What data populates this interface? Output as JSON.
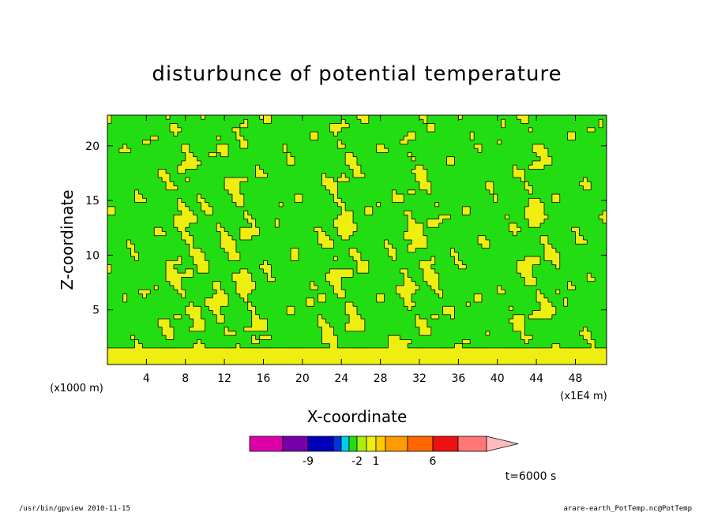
{
  "chart_data": {
    "type": "heatmap",
    "title": "disturbunce of potential temperature",
    "xlabel": "X-coordinate",
    "ylabel": "Z-coordinate",
    "x_unit": "(x1E4 m)",
    "y_unit": "(x1000 m)",
    "xlim": [
      0,
      51.2
    ],
    "ylim": [
      0,
      22.8
    ],
    "x_ticks": [
      4,
      8,
      12,
      16,
      20,
      24,
      28,
      32,
      36,
      40,
      44,
      48
    ],
    "y_ticks": [
      5,
      10,
      15,
      20
    ],
    "field_description": "Mostly green (-1..0) background with yellow (0..1) filaments; solid yellow layer near the surface below z≈1.5; narrow wave plumes near x≈8,24,44.",
    "background_level_color": "#22dd11",
    "positive_level_color": "#eeee11",
    "plumes_x": [
      8,
      13,
      24,
      32,
      44
    ],
    "colorbar": {
      "colors": [
        "#dd00aa",
        "#7700aa",
        "#0000bb",
        "#0033dd",
        "#00ccee",
        "#22dd11",
        "#aaee11",
        "#eeee11",
        "#ffcc00",
        "#ff9900",
        "#ff6600",
        "#ee1111",
        "#ff7777",
        "#ffbbbb"
      ],
      "labels": [
        {
          "text": "-9",
          "index": 1
        },
        {
          "text": "-2",
          "index": 5
        },
        {
          "text": "1",
          "index": 7
        },
        {
          "text": "6",
          "index": 10
        }
      ]
    },
    "time_label": "t=6000 s"
  },
  "footer": {
    "left": "/usr/bin/gpview  2010-11-15",
    "right": "arare-earth_PotTemp.nc@PotTemp"
  }
}
